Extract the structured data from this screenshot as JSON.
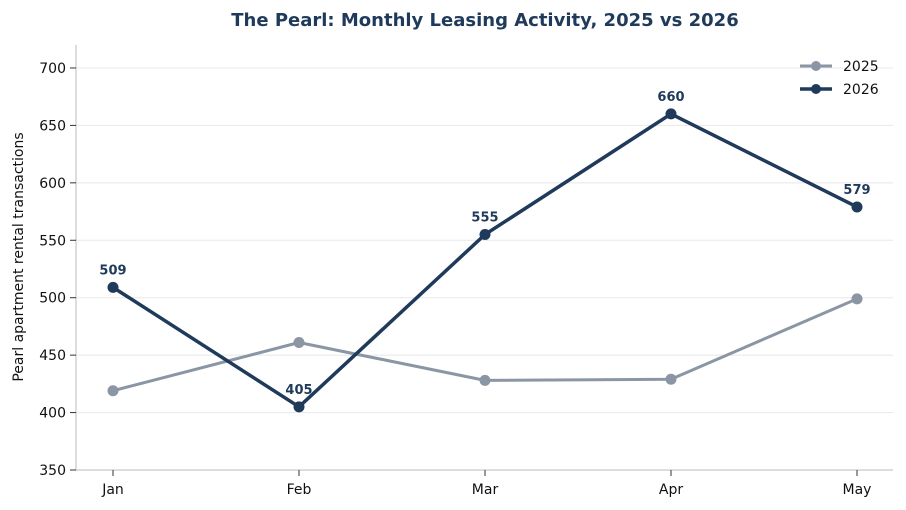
{
  "chart_data": {
    "type": "line",
    "title": "The Pearl: Monthly Leasing Activity, 2025 vs 2026",
    "xlabel": "",
    "ylabel": "Pearl apartment rental transactions",
    "categories": [
      "Jan",
      "Feb",
      "Mar",
      "Apr",
      "May"
    ],
    "ylim": [
      350,
      720
    ],
    "yticks": [
      350,
      400,
      450,
      500,
      550,
      600,
      650,
      700
    ],
    "grid": "horizontal",
    "legend_position": "top-right",
    "series": [
      {
        "name": "2025",
        "values": [
          419,
          461,
          428,
          429,
          499
        ],
        "color": "#8a96a3",
        "labeled": false
      },
      {
        "name": "2026",
        "values": [
          509,
          405,
          555,
          660,
          579
        ],
        "color": "#1f3a5a",
        "labeled": true
      }
    ]
  },
  "colors": {
    "title": "#1f3a5a",
    "grid": "#e8e8e8",
    "axis": "#bbbbbb"
  }
}
